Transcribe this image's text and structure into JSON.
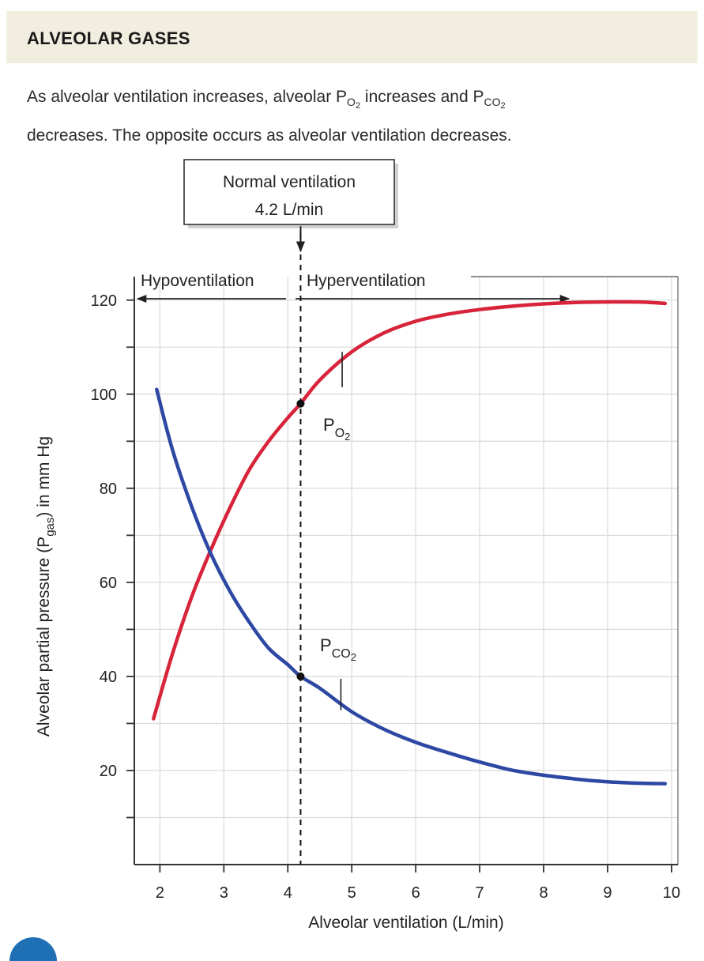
{
  "header": {
    "title": "ALVEOLAR GASES"
  },
  "caption": {
    "part1": "As alveolar ventilation increases, alveolar P",
    "o2_sub": "O",
    "o2_subsub": "2",
    "part2": " increases and P",
    "co2_sub": "CO",
    "co2_subsub": "2",
    "part3": " decreases. The opposite occurs as alveolar ventilation decreases."
  },
  "colors": {
    "po2": "#d8243a",
    "pco2": "#2d48a3",
    "grid": "#dcdcdc",
    "axis": "#333333"
  },
  "chart_data": {
    "type": "line",
    "title": "",
    "xlabel": "Alveolar ventilation (L/min)",
    "ylabel_main": "Alveolar partial pressure (P",
    "ylabel_sub": "gas",
    "ylabel_end": ") in mm Hg",
    "xlim": [
      1.6,
      10.1
    ],
    "ylim": [
      0,
      125
    ],
    "x_ticks": [
      2,
      3,
      4,
      5,
      6,
      7,
      8,
      9,
      10
    ],
    "y_ticks": [
      20,
      40,
      60,
      80,
      100,
      120
    ],
    "normal_ventilation": {
      "x": 4.2,
      "label_line1": "Normal ventilation",
      "label_line2": "4.2 L/min"
    },
    "regions": {
      "hypo": "Hypoventilation",
      "hyper": "Hyperventilation"
    },
    "series": [
      {
        "name": "PO2",
        "label_main": "P",
        "label_sub": "O",
        "label_subsub": "2",
        "x": [
          1.9,
          2.2,
          2.5,
          2.8,
          3.1,
          3.4,
          3.7,
          4.0,
          4.2,
          4.5,
          5.0,
          5.5,
          6.0,
          6.5,
          7.0,
          7.5,
          8.0,
          8.5,
          9.0,
          9.5,
          9.9
        ],
        "values": [
          31,
          45,
          57,
          67,
          76,
          84,
          90,
          95,
          98,
          103,
          109,
          113,
          115.5,
          117,
          118,
          118.7,
          119.2,
          119.5,
          119.6,
          119.6,
          119.3
        ]
      },
      {
        "name": "PCO2",
        "label_main": "P",
        "label_sub": "CO",
        "label_subsub": "2",
        "x": [
          1.95,
          2.2,
          2.5,
          2.8,
          3.1,
          3.4,
          3.7,
          4.0,
          4.2,
          4.5,
          5.0,
          5.5,
          6.0,
          6.5,
          7.0,
          7.5,
          8.0,
          8.5,
          9.0,
          9.5,
          9.9
        ],
        "values": [
          101,
          88,
          76,
          66,
          58,
          51.5,
          46,
          42.5,
          40,
          37.5,
          32.5,
          28.8,
          26,
          23.8,
          21.8,
          20.1,
          19,
          18.2,
          17.6,
          17.3,
          17.2
        ]
      }
    ],
    "markers": [
      {
        "series": "PO2",
        "x": 4.2,
        "y": 98
      },
      {
        "series": "PCO2",
        "x": 4.2,
        "y": 40
      }
    ]
  }
}
